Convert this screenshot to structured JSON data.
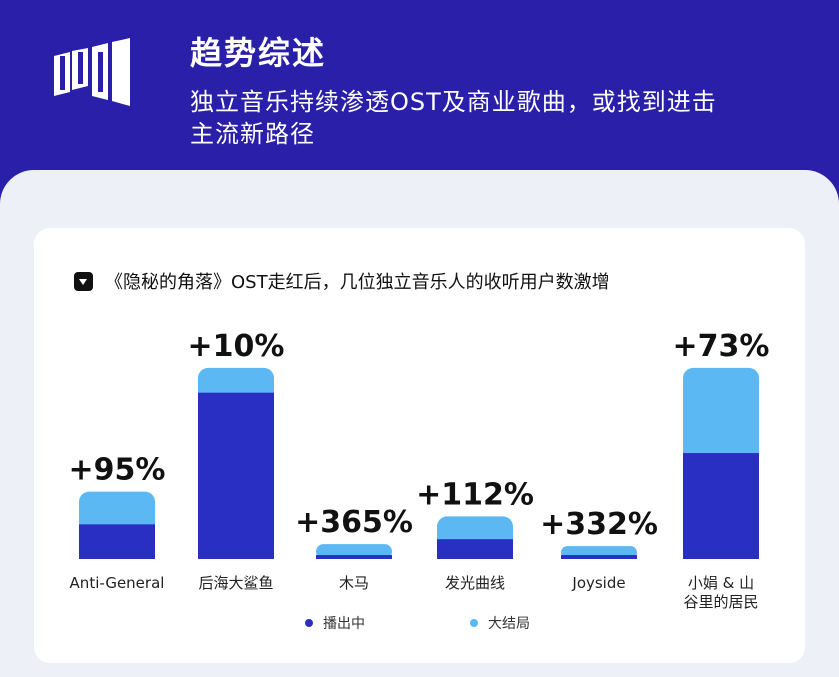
{
  "header": {
    "title": "趋势综述",
    "subtitle_line1": "独立音乐持续渗透OST及商业歌曲，或找到进击",
    "subtitle_line2": "主流新路径"
  },
  "colors": {
    "header_bg": "#2a1fa8",
    "dark_bar": "#2a2fc4",
    "light_bar": "#5cb8f2"
  },
  "card": {
    "icon": "caret-down-icon",
    "title": "《隐秘的角落》OST走红后，几位独立音乐人的收听用户数激增"
  },
  "chart_data": {
    "type": "bar",
    "stacked": true,
    "title": "《隐秘的角落》OST走红后，几位独立音乐人的收听用户数激增",
    "categories": [
      "Anti-General",
      "后海大鲨鱼",
      "木马",
      "发光曲线",
      "Joyside",
      "小娟 & 山谷里的居民"
    ],
    "category_lines": [
      [
        "Anti-General"
      ],
      [
        "后海大鲨鱼"
      ],
      [
        "木马"
      ],
      [
        "发光曲线"
      ],
      [
        "Joyside"
      ],
      [
        "小娟 & 山",
        "谷里的居民"
      ]
    ],
    "series": [
      {
        "name": "播出中",
        "values": [
          35,
          168,
          4,
          20,
          4,
          107
        ]
      },
      {
        "name": "大结局",
        "values": [
          33,
          25,
          11,
          23,
          9,
          86
        ]
      }
    ],
    "labels": [
      "+95%",
      "+10%",
      "+365%",
      "+112%",
      "+332%",
      "+73%"
    ],
    "ylim": [
      0,
      200
    ],
    "legend": "bottom",
    "grid": false
  }
}
